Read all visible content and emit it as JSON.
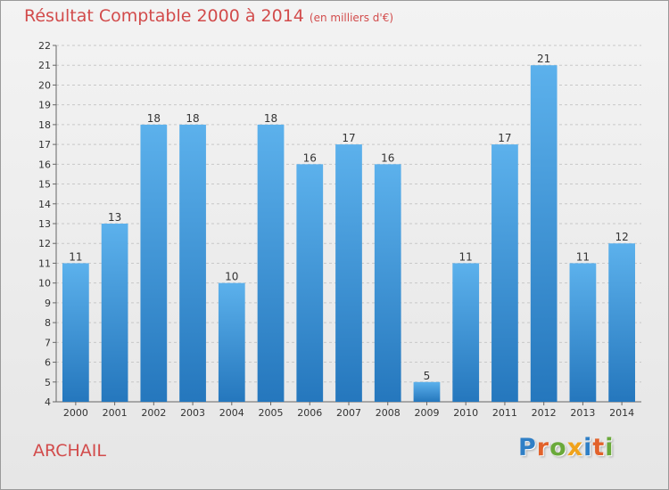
{
  "title": "Résultat Comptable 2000 à 2014",
  "unit": "(en milliers d'€)",
  "commune": "ARCHAIL",
  "logo": {
    "letters": [
      {
        "ch": "P",
        "color": "#2f7fc6"
      },
      {
        "ch": "r",
        "color": "#e2622b"
      },
      {
        "ch": "o",
        "color": "#6aa93a"
      },
      {
        "ch": "x",
        "color": "#f0a21a"
      },
      {
        "ch": "i",
        "color": "#2f7fc6"
      },
      {
        "ch": "t",
        "color": "#e2622b"
      },
      {
        "ch": "i",
        "color": "#6aa93a"
      }
    ]
  },
  "colors": {
    "bar_top": "#5cb1ec",
    "bar_bottom": "#2577bd",
    "title": "#d24b4b",
    "grid": "#c8c8c8"
  },
  "chart_data": {
    "type": "bar",
    "categories": [
      "2000",
      "2001",
      "2002",
      "2003",
      "2004",
      "2005",
      "2006",
      "2007",
      "2008",
      "2009",
      "2010",
      "2011",
      "2012",
      "2013",
      "2014"
    ],
    "values": [
      11,
      13,
      18,
      18,
      10,
      18,
      16,
      17,
      16,
      5,
      11,
      17,
      21,
      11,
      12
    ],
    "ylim": [
      4,
      22
    ],
    "yticks": [
      4,
      5,
      6,
      7,
      8,
      9,
      10,
      11,
      12,
      13,
      14,
      15,
      16,
      17,
      18,
      19,
      20,
      21,
      22
    ],
    "grid": true
  }
}
